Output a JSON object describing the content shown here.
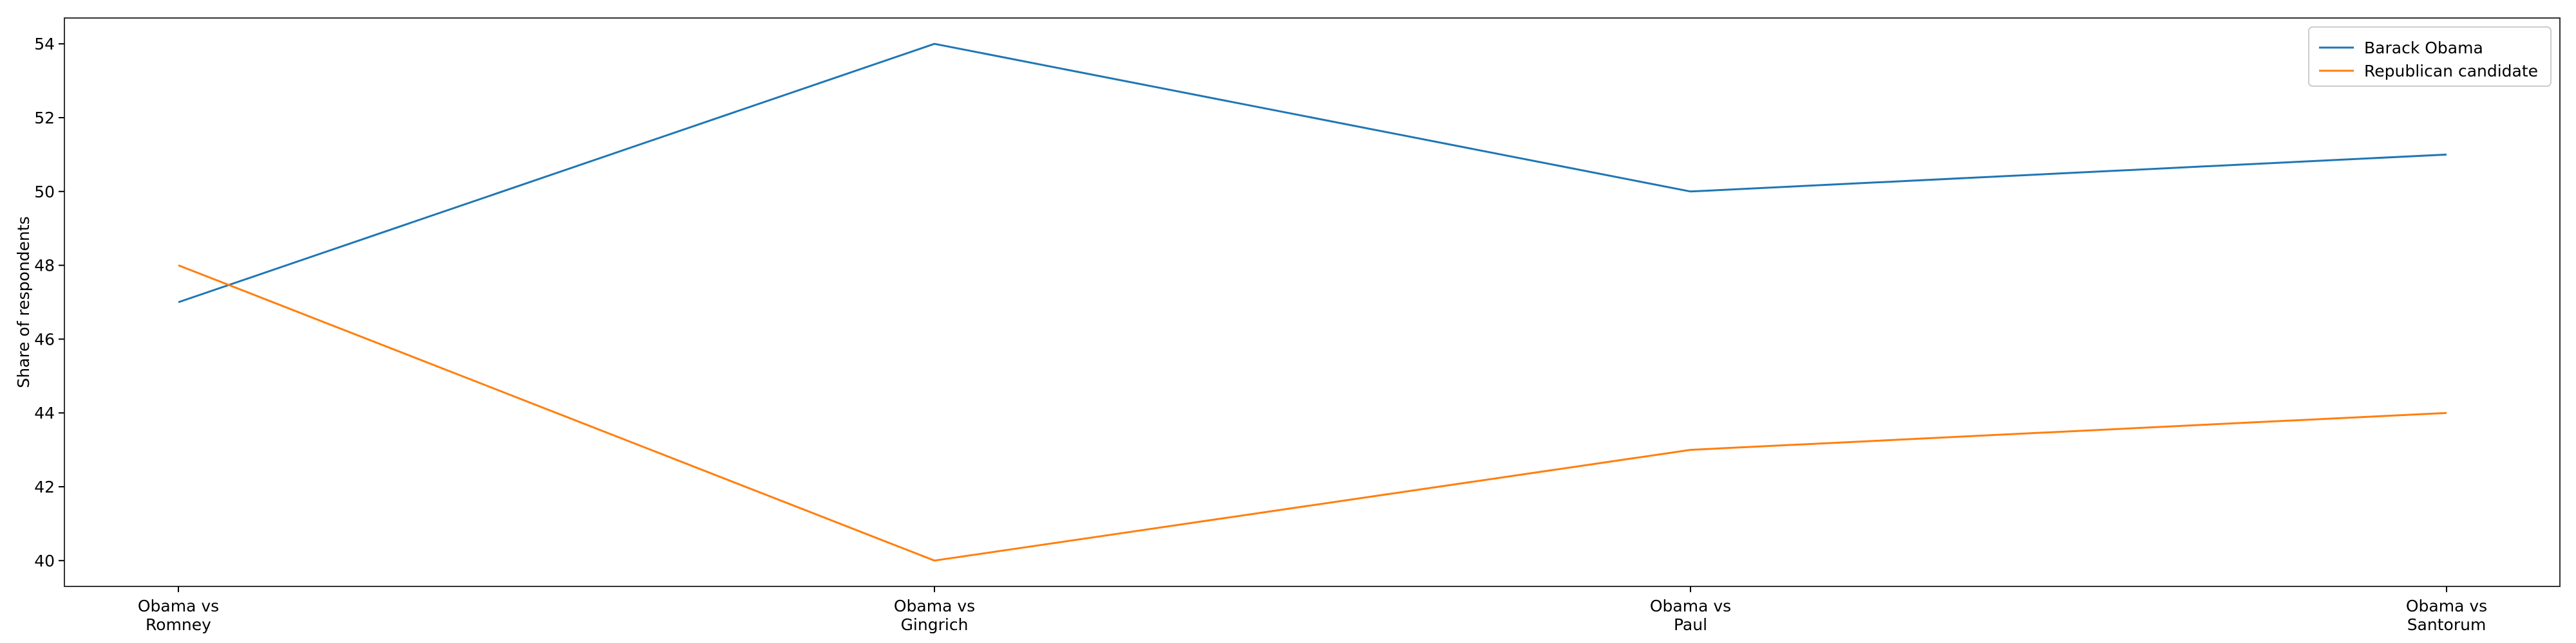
{
  "chart_data": {
    "type": "line",
    "categories": [
      "Obama vs\nRomney",
      "Obama vs\nGingrich",
      "Obama vs\nPaul",
      "Obama vs\nSantorum"
    ],
    "series": [
      {
        "name": "Barack Obama",
        "values": [
          47,
          54,
          50,
          51
        ],
        "color": "#1f77b4"
      },
      {
        "name": "Republican candidate",
        "values": [
          48,
          40,
          43,
          44
        ],
        "color": "#ff7f0e"
      }
    ],
    "ylabel": "Share of respondents",
    "ylim": [
      39.3,
      54.7
    ],
    "yticks": [
      40,
      42,
      44,
      46,
      48,
      50,
      52,
      54
    ],
    "legend": "top-right",
    "grid": false
  }
}
